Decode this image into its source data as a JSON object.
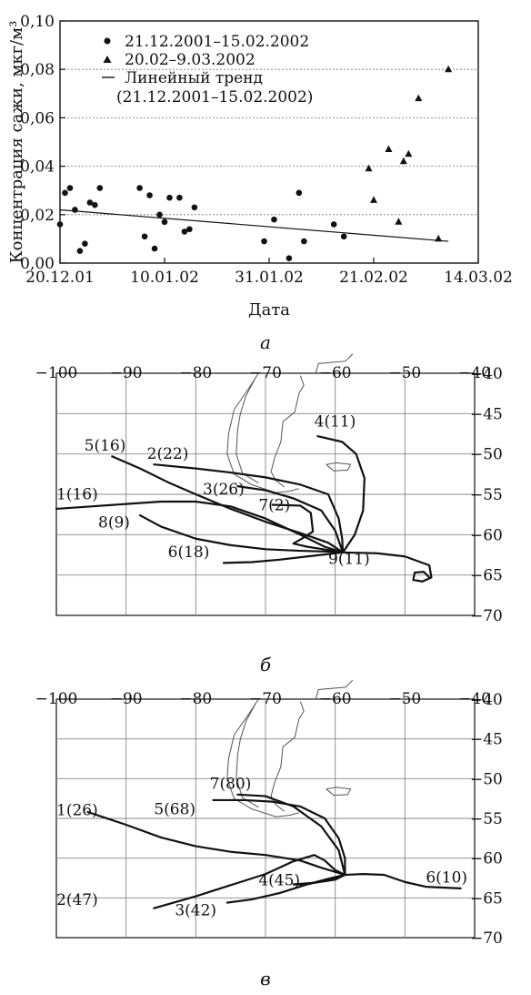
{
  "chart_data": [
    {
      "type": "scatter",
      "panel": "a",
      "caption": "а",
      "xlabel": "Дата",
      "ylabel": "Концентрация сажи, мкг/м³",
      "ylim": [
        0,
        0.1
      ],
      "y_ticks": [
        "0,00",
        "0,02",
        "0,04",
        "0,06",
        "0,08",
        "0,10"
      ],
      "x_ticks": [
        "20.12.01",
        "10.01.02",
        "31.01.02",
        "21.02.02",
        "14.03.02"
      ],
      "legend_position": "top-left",
      "legend": [
        {
          "marker": "circle",
          "label": "21.12.2001–15.02.2002"
        },
        {
          "marker": "triangle",
          "label": "20.02–9.03.2002"
        },
        {
          "marker": "line",
          "label": "Линейный тренд"
        },
        {
          "marker": "none",
          "label": "(21.12.2001–15.02.2002)"
        }
      ],
      "series": [
        {
          "name": "21.12.2001–15.02.2002",
          "marker": "circle",
          "points": [
            [
              "2001-12-20",
              0.016
            ],
            [
              "2001-12-21",
              0.029
            ],
            [
              "2001-12-22",
              0.031
            ],
            [
              "2001-12-23",
              0.022
            ],
            [
              "2001-12-24",
              0.005
            ],
            [
              "2001-12-25",
              0.008
            ],
            [
              "2001-12-26",
              0.025
            ],
            [
              "2001-12-27",
              0.024
            ],
            [
              "2001-12-28",
              0.031
            ],
            [
              "2002-01-05",
              0.031
            ],
            [
              "2002-01-06",
              0.011
            ],
            [
              "2002-01-07",
              0.028
            ],
            [
              "2002-01-08",
              0.006
            ],
            [
              "2002-01-09",
              0.02
            ],
            [
              "2002-01-10",
              0.017
            ],
            [
              "2002-01-11",
              0.027
            ],
            [
              "2002-01-13",
              0.027
            ],
            [
              "2002-01-14",
              0.013
            ],
            [
              "2002-01-15",
              0.014
            ],
            [
              "2002-01-16",
              0.023
            ],
            [
              "2002-01-30",
              0.009
            ],
            [
              "2002-02-01",
              0.018
            ],
            [
              "2002-02-04",
              0.002
            ],
            [
              "2002-02-06",
              0.029
            ],
            [
              "2002-02-07",
              0.009
            ],
            [
              "2002-02-13",
              0.016
            ],
            [
              "2002-02-15",
              0.011
            ]
          ]
        },
        {
          "name": "20.02–9.03.2002",
          "marker": "triangle",
          "points": [
            [
              "2002-02-20",
              0.039
            ],
            [
              "2002-02-21",
              0.026
            ],
            [
              "2002-02-24",
              0.047
            ],
            [
              "2002-02-26",
              0.017
            ],
            [
              "2002-02-27",
              0.042
            ],
            [
              "2002-02-28",
              0.045
            ],
            [
              "2002-03-02",
              0.068
            ],
            [
              "2002-03-06",
              0.01
            ],
            [
              "2002-03-08",
              0.08
            ]
          ]
        }
      ],
      "trend": {
        "name": "Линейный тренд",
        "from": [
          "2001-12-20",
          0.022
        ],
        "to": [
          "2002-03-08",
          0.009
        ]
      }
    },
    {
      "type": "trajectory_map",
      "panel": "b",
      "caption": "б",
      "x_ticks": [
        "−100",
        "−90",
        "−80",
        "−70",
        "−60",
        "−50",
        "−40"
      ],
      "y_ticks": [
        "−40",
        "−45",
        "−50",
        "−55",
        "−60",
        "−65",
        "−70"
      ],
      "origin": [
        -58.9,
        -62.2
      ],
      "trajectories": [
        {
          "label": "1(16)",
          "points": [
            [
              -100,
              -56.8
            ],
            [
              -95,
              -56.5
            ],
            [
              -90,
              -56.2
            ],
            [
              -85,
              -55.9
            ],
            [
              -80,
              -55.9
            ],
            [
              -75,
              -56.5
            ],
            [
              -70,
              -58
            ],
            [
              -65,
              -60
            ],
            [
              -61.5,
              -61.5
            ],
            [
              -58.9,
              -62.2
            ]
          ]
        },
        {
          "label": "2(22)",
          "points": [
            [
              -86,
              -51.3
            ],
            [
              -80,
              -51.8
            ],
            [
              -75,
              -52.3
            ],
            [
              -70,
              -52.9
            ],
            [
              -65,
              -53.8
            ],
            [
              -61,
              -55
            ],
            [
              -59.5,
              -58
            ],
            [
              -59,
              -60.5
            ],
            [
              -58.9,
              -62.2
            ]
          ]
        },
        {
          "label": "3(26)",
          "points": [
            [
              -74,
              -54
            ],
            [
              -70,
              -54.5
            ],
            [
              -66,
              -55.5
            ],
            [
              -62,
              -57
            ],
            [
              -60,
              -59.5
            ],
            [
              -58.9,
              -62.2
            ]
          ]
        },
        {
          "label": "4(11)",
          "points": [
            [
              -62.5,
              -47.8
            ],
            [
              -59,
              -48.5
            ],
            [
              -57,
              -50
            ],
            [
              -55.8,
              -53
            ],
            [
              -56,
              -57
            ],
            [
              -57.2,
              -60
            ],
            [
              -58.9,
              -62.2
            ]
          ]
        },
        {
          "label": "5(16)",
          "points": [
            [
              -92,
              -50.3
            ],
            [
              -88,
              -51.8
            ],
            [
              -84,
              -53.5
            ],
            [
              -80,
              -55
            ],
            [
              -75,
              -56.8
            ],
            [
              -70,
              -58.4
            ],
            [
              -65,
              -59.8
            ],
            [
              -61,
              -61
            ],
            [
              -58.9,
              -62.2
            ]
          ]
        },
        {
          "label": "6(18)",
          "points": [
            [
              -76,
              -63.5
            ],
            [
              -72,
              -63.4
            ],
            [
              -68,
              -63.1
            ],
            [
              -64,
              -62.7
            ],
            [
              -61,
              -62.4
            ],
            [
              -58.9,
              -62.2
            ]
          ]
        },
        {
          "label": "7(2)",
          "points": [
            [
              -69,
              -56.3
            ],
            [
              -65,
              -56.4
            ],
            [
              -63.5,
              -57.3
            ],
            [
              -63.2,
              -59.6
            ],
            [
              -64.8,
              -60.5
            ],
            [
              -66,
              -61.1
            ],
            [
              -64,
              -61.5
            ],
            [
              -61,
              -61.9
            ],
            [
              -58.9,
              -62.2
            ]
          ]
        },
        {
          "label": "8(9)",
          "points": [
            [
              -88,
              -57.6
            ],
            [
              -85,
              -59
            ],
            [
              -80,
              -60.5
            ],
            [
              -75,
              -61.3
            ],
            [
              -70,
              -61.8
            ],
            [
              -65,
              -62
            ],
            [
              -61,
              -62.1
            ],
            [
              -58.9,
              -62.2
            ]
          ]
        },
        {
          "label": "9(11)",
          "points": [
            [
              -58.9,
              -62.2
            ],
            [
              -54,
              -62.3
            ],
            [
              -50,
              -62.7
            ],
            [
              -46.5,
              -63.8
            ],
            [
              -46.2,
              -65.3
            ],
            [
              -47.5,
              -65.8
            ],
            [
              -48.8,
              -65.6
            ],
            [
              -48.6,
              -64.7
            ],
            [
              -47.3,
              -64.6
            ],
            [
              -46.6,
              -65.2
            ]
          ]
        }
      ]
    },
    {
      "type": "trajectory_map",
      "panel": "v",
      "caption": "в",
      "x_ticks": [
        "−100",
        "−90",
        "−80",
        "−70",
        "−60",
        "−50",
        "−40"
      ],
      "y_ticks": [
        "−40",
        "−45",
        "−50",
        "−55",
        "−60",
        "−65",
        "−70"
      ],
      "origin": [
        -58.6,
        -62.1
      ],
      "trajectories": [
        {
          "label": "1(26)",
          "points": [
            [
              -95.5,
              -54.2
            ],
            [
              -90,
              -55.8
            ],
            [
              -85,
              -57.4
            ],
            [
              -80,
              -58.5
            ],
            [
              -75,
              -59.2
            ],
            [
              -70,
              -59.6
            ],
            [
              -65,
              -60.3
            ],
            [
              -62,
              -61.2
            ],
            [
              -58.6,
              -62.1
            ]
          ]
        },
        {
          "label": "2(47)",
          "points": [
            [
              -86,
              -66.3
            ],
            [
              -80,
              -64.8
            ],
            [
              -75,
              -63.4
            ],
            [
              -70,
              -62
            ],
            [
              -66,
              -60.4
            ],
            [
              -63,
              -59.6
            ],
            [
              -61.5,
              -60.3
            ],
            [
              -60,
              -61.5
            ],
            [
              -58.6,
              -62.1
            ]
          ]
        },
        {
          "label": "3(42)",
          "points": [
            [
              -75.5,
              -65.6
            ],
            [
              -72,
              -65.2
            ],
            [
              -68,
              -64.4
            ],
            [
              -64,
              -63.3
            ],
            [
              -61,
              -62.6
            ],
            [
              -58.6,
              -62.1
            ]
          ]
        },
        {
          "label": "4(45)",
          "points": [
            [
              -58.6,
              -62.1
            ],
            [
              -61,
              -62.7
            ],
            [
              -64,
              -63.3
            ],
            [
              -66,
              -63.3
            ],
            [
              -63,
              -63.1
            ],
            [
              -60,
              -62.7
            ],
            [
              -58.6,
              -62.1
            ]
          ]
        },
        {
          "label": "5(68)",
          "points": [
            [
              -77.5,
              -52.7
            ],
            [
              -73,
              -52.7
            ],
            [
              -69,
              -52.9
            ],
            [
              -65,
              -53.5
            ],
            [
              -61.5,
              -55
            ],
            [
              -59.5,
              -57.5
            ],
            [
              -58.6,
              -60
            ],
            [
              -58.6,
              -62.1
            ]
          ]
        },
        {
          "label": "6(10)",
          "points": [
            [
              -58.6,
              -62.1
            ],
            [
              -56,
              -62
            ],
            [
              -53,
              -62.1
            ],
            [
              -50,
              -63
            ],
            [
              -47,
              -63.6
            ],
            [
              -42,
              -63.8
            ]
          ]
        },
        {
          "label": "7(80)",
          "points": [
            [
              -74,
              -52
            ],
            [
              -70,
              -52.2
            ],
            [
              -66,
              -53.5
            ],
            [
              -62,
              -56
            ],
            [
              -59.5,
              -59
            ],
            [
              -58.6,
              -62.1
            ]
          ]
        }
      ]
    }
  ]
}
